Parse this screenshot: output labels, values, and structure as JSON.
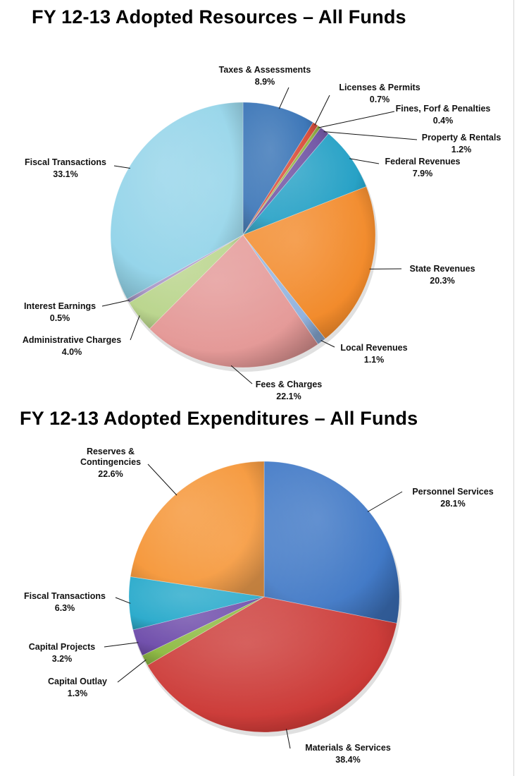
{
  "chart_data": [
    {
      "type": "pie",
      "title": "FY 12-13 Adopted Resources – All Funds",
      "slices": [
        {
          "label": "Taxes & Assessments",
          "value": 8.9,
          "display": "8.9%",
          "color": "#2f6db3"
        },
        {
          "label": "Licenses & Permits",
          "value": 0.7,
          "display": "0.7%",
          "color": "#d8432f"
        },
        {
          "label": "Fines, Forf & Penalties",
          "value": 0.4,
          "display": "0.4%",
          "color": "#8db03a"
        },
        {
          "label": "Property & Rentals",
          "value": 1.2,
          "display": "1.2%",
          "color": "#6a4da0"
        },
        {
          "label": "Federal Revenues",
          "value": 7.9,
          "display": "7.9%",
          "color": "#1f9ec4"
        },
        {
          "label": "State Revenues",
          "value": 20.3,
          "display": "20.3%",
          "color": "#f28a2a"
        },
        {
          "label": "Local Revenues",
          "value": 1.1,
          "display": "1.1%",
          "color": "#8fb1dd"
        },
        {
          "label": "Fees & Charges",
          "value": 22.1,
          "display": "22.1%",
          "color": "#e49896"
        },
        {
          "label": "Administrative Charges",
          "value": 4.0,
          "display": "4.0%",
          "color": "#b8d48a"
        },
        {
          "label": "Interest Earnings",
          "value": 0.5,
          "display": "0.5%",
          "color": "#a896c6"
        },
        {
          "label": "Fiscal Transactions",
          "value": 33.1,
          "display": "33.1%",
          "color": "#8ed2e8"
        }
      ]
    },
    {
      "type": "pie",
      "title": "FY 12-13 Adopted Expenditures – All Funds",
      "slices": [
        {
          "label": "Personnel Services",
          "value": 28.1,
          "display": "28.1%",
          "color": "#3a74c4"
        },
        {
          "label": "Materials & Services",
          "value": 38.4,
          "display": "38.4%",
          "color": "#cc3a37"
        },
        {
          "label": "Capital Outlay",
          "value": 1.3,
          "display": "1.3%",
          "color": "#8ab83c"
        },
        {
          "label": "Capital Projects",
          "value": 3.2,
          "display": "3.2%",
          "color": "#6a47a8"
        },
        {
          "label": "Fiscal Transactions",
          "value": 6.3,
          "display": "6.3%",
          "color": "#1fa6c9"
        },
        {
          "label": "Reserves & Contingencies",
          "lines": [
            "Reserves &",
            "Contingencies"
          ],
          "value": 22.6,
          "display": "22.6%",
          "color": "#f5902c"
        }
      ]
    }
  ]
}
